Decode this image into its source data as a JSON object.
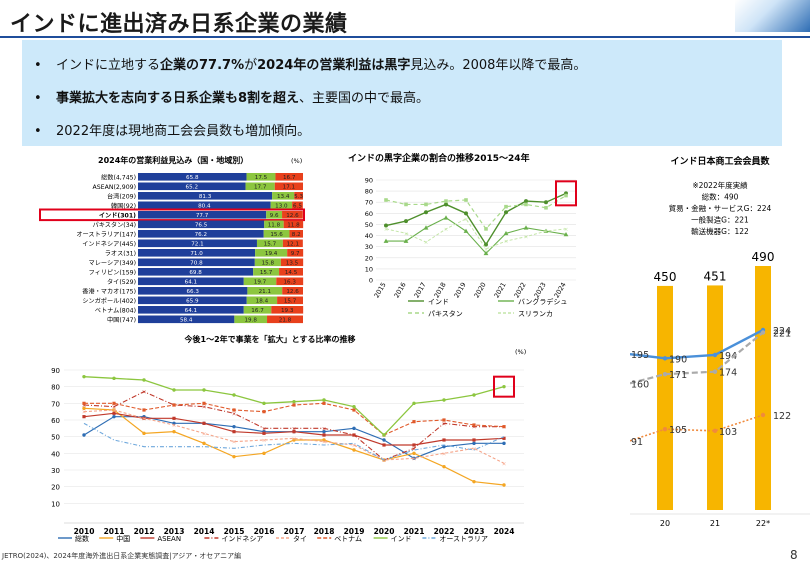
{
  "slide": {
    "title": "インドに進出済み日系企業の業績",
    "page_number": "8",
    "source": "JETRO(2024)、2024年度海外進出日系企業実態調査|アジア・オセアニア編",
    "bullets": [
      {
        "marker": "•",
        "parts": [
          {
            "text": "インドに立地する",
            "bold": false
          },
          {
            "text": "企業の77.7%",
            "bold": true
          },
          {
            "text": "が",
            "bold": false
          },
          {
            "text": "2024年の営業利益は黒字",
            "bold": true
          },
          {
            "text": "見込み。2008年以降で最高。",
            "bold": false
          }
        ]
      },
      {
        "marker": "•",
        "parts": [
          {
            "text": "事業拡大を志向する日系企業も8割を超え",
            "bold": true
          },
          {
            "text": "、主要国の中で最高。",
            "bold": false
          }
        ]
      },
      {
        "marker": "•",
        "parts": [
          {
            "text": "2022年度は現地商工会会員数も増加傾向。",
            "bold": false
          }
        ]
      }
    ]
  },
  "colors": {
    "title_rule": "#1f4e9b",
    "bullet_bg": "#cde9fa",
    "bar_blue": "#1f3f9a",
    "bar_green": "#8cc63f",
    "bar_red": "#e8401c",
    "highlight": "#e0001b",
    "gold": "#f7b500",
    "line_blue": "#4a90d9"
  },
  "chart_data": [
    {
      "id": "profit_outlook",
      "type": "bar",
      "stacked": true,
      "orientation": "horizontal",
      "title": "2024年の営業利益見込み（国・地域別）",
      "unit": "(%)",
      "highlight_category": "インド(301)",
      "categories": [
        "総数(4,745)",
        "ASEAN(2,909)",
        "台湾(209)",
        "韓国(92)",
        "インド(301)",
        "パキスタン(34)",
        "オーストラリア(147)",
        "インドネシア(445)",
        "ラオス(31)",
        "マレーシア(349)",
        "フィリピン(159)",
        "タイ(529)",
        "香港・マカオ(175)",
        "シンガポール(402)",
        "ベトナム(804)",
        "中国(747)"
      ],
      "series": [
        {
          "name": "",
          "values": [
            65.8,
            65.2,
            81.3,
            80.4,
            77.7,
            76.5,
            76.2,
            72.1,
            71.0,
            70.8,
            69.8,
            64.1,
            66.3,
            65.9,
            64.1,
            58.4
          ]
        },
        {
          "name": "",
          "values": [
            17.5,
            17.7,
            13.4,
            13.0,
            9.6,
            11.8,
            15.6,
            15.7,
            19.4,
            15.8,
            15.7,
            19.7,
            21.1,
            18.4,
            16.7,
            19.8
          ]
        },
        {
          "name": "",
          "values": [
            16.7,
            17.1,
            5.3,
            6.5,
            12.6,
            11.8,
            8.2,
            12.1,
            9.7,
            13.5,
            14.5,
            16.3,
            12.6,
            15.7,
            19.3,
            21.8
          ]
        }
      ],
      "xlim": [
        0,
        100
      ]
    },
    {
      "id": "surplus_ratio",
      "type": "line",
      "title": "インドの黒字企業の割合の推移2015～24年",
      "x": [
        "2015",
        "2016",
        "2017",
        "2018",
        "2019",
        "2020",
        "2021",
        "2022",
        "2023",
        "2024"
      ],
      "ylim": [
        0,
        90
      ],
      "yticks": [
        0,
        10,
        20,
        30,
        40,
        50,
        60,
        70,
        80,
        90
      ],
      "series": [
        {
          "name": "インド",
          "values": [
            49,
            53,
            61,
            68,
            60,
            32,
            61,
            71,
            70,
            78
          ]
        },
        {
          "name": "バングラデシュ",
          "values": [
            35,
            35,
            47,
            56,
            44,
            24,
            42,
            47,
            44,
            41
          ]
        },
        {
          "name": "パキスタン",
          "values": [
            72,
            68,
            68,
            71,
            72,
            46,
            66,
            68,
            65,
            76
          ]
        },
        {
          "name": "スリランカ",
          "values": [
            46,
            42,
            34,
            46,
            55,
            28,
            35,
            39,
            44,
            46
          ]
        }
      ],
      "legend_position": "bottom"
    },
    {
      "id": "chamber_members",
      "type": "bar",
      "title": "インド日本商工会会員数",
      "note_lines": [
        "※2022年度実績",
        "総数：490",
        "貿易・金融・サービスG：224",
        "一般製造G：221",
        "輸送機器G：122"
      ],
      "categories": [
        "20",
        "21",
        "22*"
      ],
      "bar_values": [
        450,
        451,
        490
      ],
      "series": [
        {
          "name": "",
          "values": [
            190,
            194,
            224
          ],
          "left_label": "195"
        },
        {
          "name": "",
          "values": [
            171,
            174,
            221
          ],
          "left_label": "160"
        },
        {
          "name": "",
          "values": [
            105,
            103,
            122
          ],
          "left_label": "91"
        }
      ]
    },
    {
      "id": "expansion_ratio",
      "type": "line",
      "title": "今後1～2年で事業を「拡大」とする比率の推移",
      "unit": "(%)",
      "x": [
        "2010",
        "2011",
        "2012",
        "2013",
        "2014",
        "2015",
        "2016",
        "2017",
        "2018",
        "2019",
        "2020",
        "2021",
        "2022",
        "2023",
        "2024"
      ],
      "ylim": [
        0,
        90
      ],
      "yticks": [
        0,
        10,
        20,
        30,
        40,
        50,
        60,
        70,
        80,
        90
      ],
      "series": [
        {
          "name": "総数",
          "values": [
            51,
            62,
            62,
            58,
            58,
            56,
            53,
            53,
            53,
            55,
            48,
            37,
            44,
            46,
            46
          ]
        },
        {
          "name": "中国",
          "values": [
            67,
            66,
            52,
            53,
            46,
            38,
            40,
            48,
            48,
            42,
            36,
            40,
            32,
            23,
            21
          ]
        },
        {
          "name": "ASEAN",
          "values": [
            62,
            64,
            61,
            61,
            58,
            53,
            52,
            53,
            51,
            51,
            45,
            45,
            48,
            48,
            49
          ]
        },
        {
          "name": "インドネシア",
          "values": [
            69,
            68,
            77,
            69,
            68,
            64,
            55,
            55,
            55,
            51,
            36,
            43,
            58,
            56,
            56
          ]
        },
        {
          "name": "タイ",
          "values": [
            65,
            66,
            61,
            57,
            52,
            47,
            48,
            49,
            47,
            45,
            36,
            37,
            40,
            43,
            34
          ]
        },
        {
          "name": "ベトナム",
          "values": [
            70,
            70,
            66,
            69,
            70,
            66,
            65,
            69,
            70,
            66,
            51,
            59,
            60,
            57,
            56
          ]
        },
        {
          "name": "インド",
          "values": [
            86,
            85,
            84,
            78,
            78,
            75,
            70,
            71,
            72,
            68,
            51,
            70,
            72,
            75,
            80
          ]
        },
        {
          "name": "オーストラリア",
          "values": [
            58,
            48,
            44,
            44,
            44,
            43,
            45,
            46,
            45,
            46,
            36,
            42,
            45,
            42,
            50
          ]
        }
      ]
    }
  ]
}
